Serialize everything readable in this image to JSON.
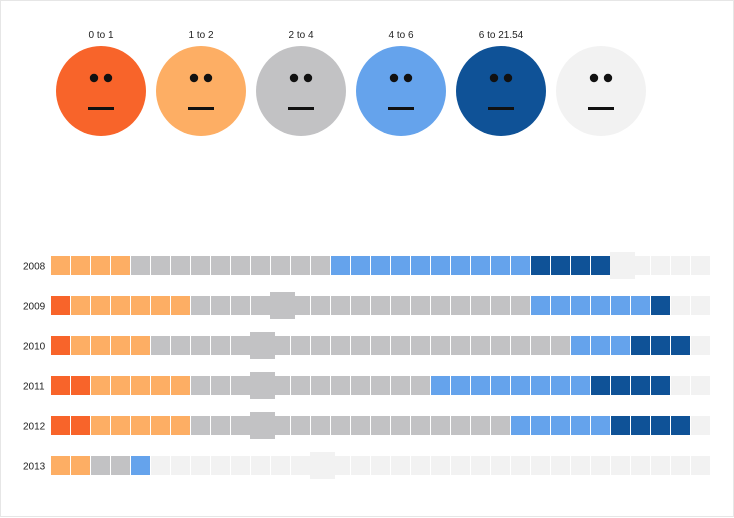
{
  "chart_data": {
    "type": "heatmap",
    "title": "",
    "xlabel": "",
    "ylabel": "",
    "legend_placement": "top",
    "bins": [
      {
        "label": "0 to 1",
        "color": "#f8642a"
      },
      {
        "label": "1 to 2",
        "color": "#fdae64"
      },
      {
        "label": "2 to 4",
        "color": "#c2c2c4"
      },
      {
        "label": "4 to 6",
        "color": "#65a3ec"
      },
      {
        "label": "6 to 21.54",
        "color": "#0f5297"
      },
      {
        "label": "",
        "color": "#f2f2f2"
      }
    ],
    "rows": [
      {
        "year": "2008",
        "cells": [
          1,
          1,
          1,
          1,
          2,
          2,
          2,
          2,
          2,
          2,
          2,
          2,
          2,
          2,
          3,
          3,
          3,
          3,
          3,
          3,
          3,
          3,
          3,
          3,
          4,
          4,
          4,
          4,
          5,
          5,
          5,
          5,
          5
        ],
        "highlight": 28
      },
      {
        "year": "2009",
        "cells": [
          0,
          1,
          1,
          1,
          1,
          1,
          1,
          2,
          2,
          2,
          2,
          2,
          2,
          2,
          2,
          2,
          2,
          2,
          2,
          2,
          2,
          2,
          2,
          2,
          3,
          3,
          3,
          3,
          3,
          3,
          4,
          5,
          5
        ],
        "highlight": 11
      },
      {
        "year": "2010",
        "cells": [
          0,
          1,
          1,
          1,
          1,
          2,
          2,
          2,
          2,
          2,
          2,
          2,
          2,
          2,
          2,
          2,
          2,
          2,
          2,
          2,
          2,
          2,
          2,
          2,
          2,
          2,
          3,
          3,
          3,
          4,
          4,
          4,
          5
        ],
        "highlight": 10
      },
      {
        "year": "2011",
        "cells": [
          0,
          0,
          1,
          1,
          1,
          1,
          1,
          2,
          2,
          2,
          2,
          2,
          2,
          2,
          2,
          2,
          2,
          2,
          2,
          3,
          3,
          3,
          3,
          3,
          3,
          3,
          3,
          4,
          4,
          4,
          4,
          5,
          5
        ],
        "highlight": 10
      },
      {
        "year": "2012",
        "cells": [
          0,
          0,
          1,
          1,
          1,
          1,
          1,
          2,
          2,
          2,
          2,
          2,
          2,
          2,
          2,
          2,
          2,
          2,
          2,
          2,
          2,
          2,
          2,
          3,
          3,
          3,
          3,
          3,
          4,
          4,
          4,
          4,
          5
        ],
        "highlight": 10
      },
      {
        "year": "2013",
        "cells": [
          1,
          1,
          2,
          2,
          3,
          5,
          5,
          5,
          5,
          5,
          5,
          5,
          5,
          5,
          5,
          5,
          5,
          5,
          5,
          5,
          5,
          5,
          5,
          5,
          5,
          5,
          5,
          5,
          5,
          5,
          5,
          5,
          5
        ],
        "highlight": 13
      }
    ]
  }
}
